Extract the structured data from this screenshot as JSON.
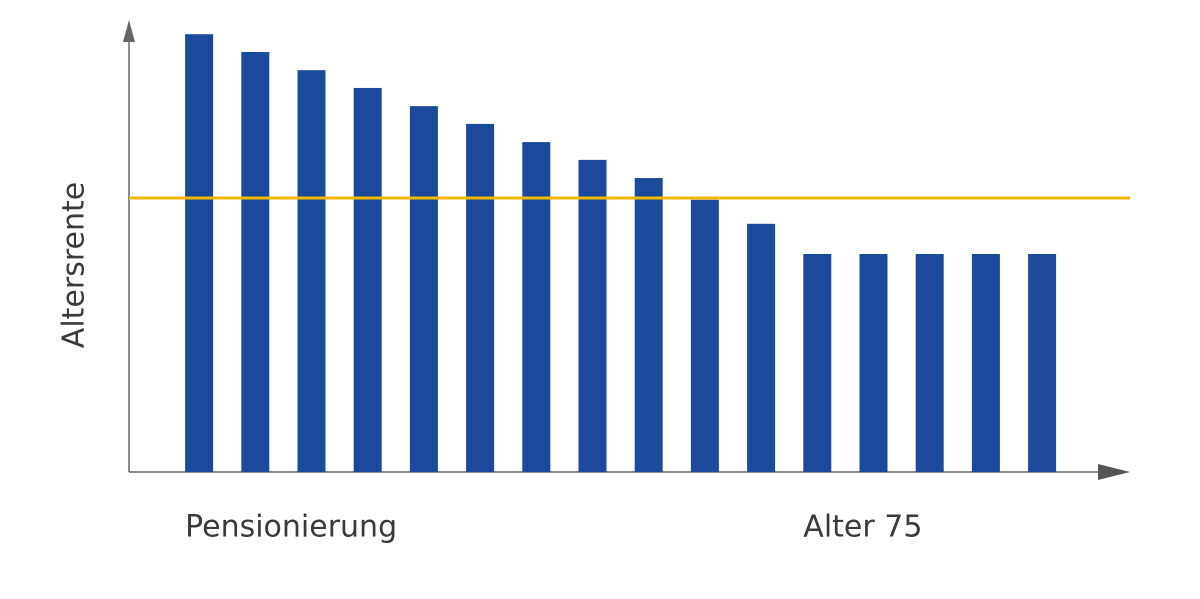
{
  "chart_data": {
    "type": "bar",
    "y_label": "Altersrente",
    "categories": [
      "Pensionierung",
      null,
      null,
      null,
      null,
      null,
      null,
      null,
      null,
      null,
      null,
      "Alter 75",
      null,
      null,
      null,
      null
    ],
    "values": [
      98.6,
      94.6,
      90.5,
      86.5,
      82.4,
      78.4,
      74.3,
      70.3,
      66.2,
      61.3,
      55.9,
      49.1,
      49.1,
      49.1,
      49.1,
      49.1
    ],
    "color": "#1b4a9c",
    "ylim": [
      0,
      100
    ],
    "reference_line": {
      "value": 61.7,
      "color": "#f2b900"
    }
  }
}
